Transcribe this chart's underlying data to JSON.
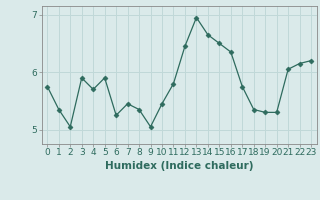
{
  "x": [
    0,
    1,
    2,
    3,
    4,
    5,
    6,
    7,
    8,
    9,
    10,
    11,
    12,
    13,
    14,
    15,
    16,
    17,
    18,
    19,
    20,
    21,
    22,
    23
  ],
  "y": [
    5.75,
    5.35,
    5.05,
    5.9,
    5.7,
    5.9,
    5.25,
    5.45,
    5.35,
    5.05,
    5.45,
    5.8,
    6.45,
    6.95,
    6.65,
    6.5,
    6.35,
    5.75,
    5.35,
    5.3,
    5.3,
    6.05,
    6.15,
    6.2
  ],
  "line_color": "#2e6b5e",
  "marker": "D",
  "marker_size": 2.5,
  "bg_color": "#daeaea",
  "grid_color": "#c0d8d8",
  "xlabel": "Humidex (Indice chaleur)",
  "ylim": [
    4.75,
    7.15
  ],
  "yticks": [
    5,
    6,
    7
  ],
  "xticks": [
    0,
    1,
    2,
    3,
    4,
    5,
    6,
    7,
    8,
    9,
    10,
    11,
    12,
    13,
    14,
    15,
    16,
    17,
    18,
    19,
    20,
    21,
    22,
    23
  ],
  "xlabel_fontsize": 7.5,
  "tick_fontsize": 6.5,
  "axis_color": "#888888",
  "line_width": 0.9
}
